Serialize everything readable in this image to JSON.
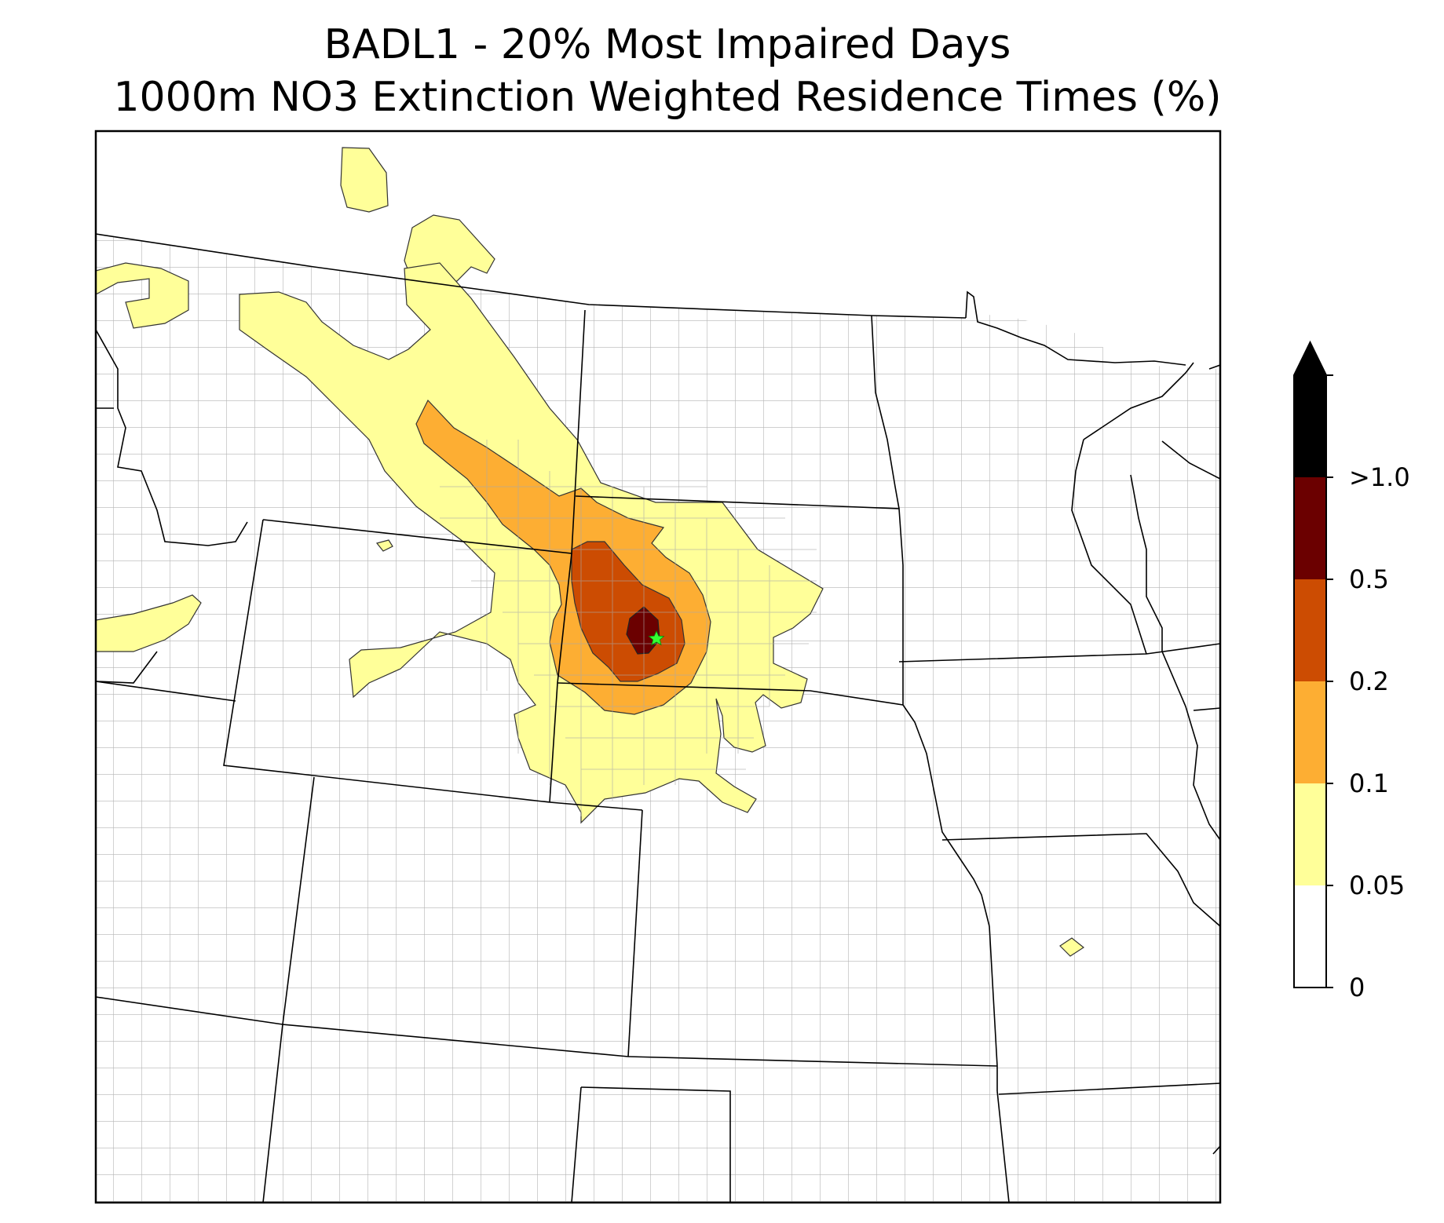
{
  "title": {
    "line1": "BADL1 - 20% Most Impaired Days",
    "line2": "1000m NO3 Extinction Weighted Residence Times (%)"
  },
  "colorbar": {
    "levels": [
      {
        "label": "0",
        "color": "#ffffff"
      },
      {
        "label": "0.05",
        "color": "#ffff99"
      },
      {
        "label": "0.1",
        "color": "#fdae33"
      },
      {
        "label": "0.2",
        "color": "#cc4c02"
      },
      {
        "label": "0.5",
        "color": "#6b0000"
      },
      {
        "label": ">1.0",
        "color": "#000000"
      }
    ],
    "extend": "max"
  },
  "map": {
    "site_marker_color": "#33ff33",
    "state_line_color": "#000000",
    "county_line_color": "#a0a0a0"
  }
}
